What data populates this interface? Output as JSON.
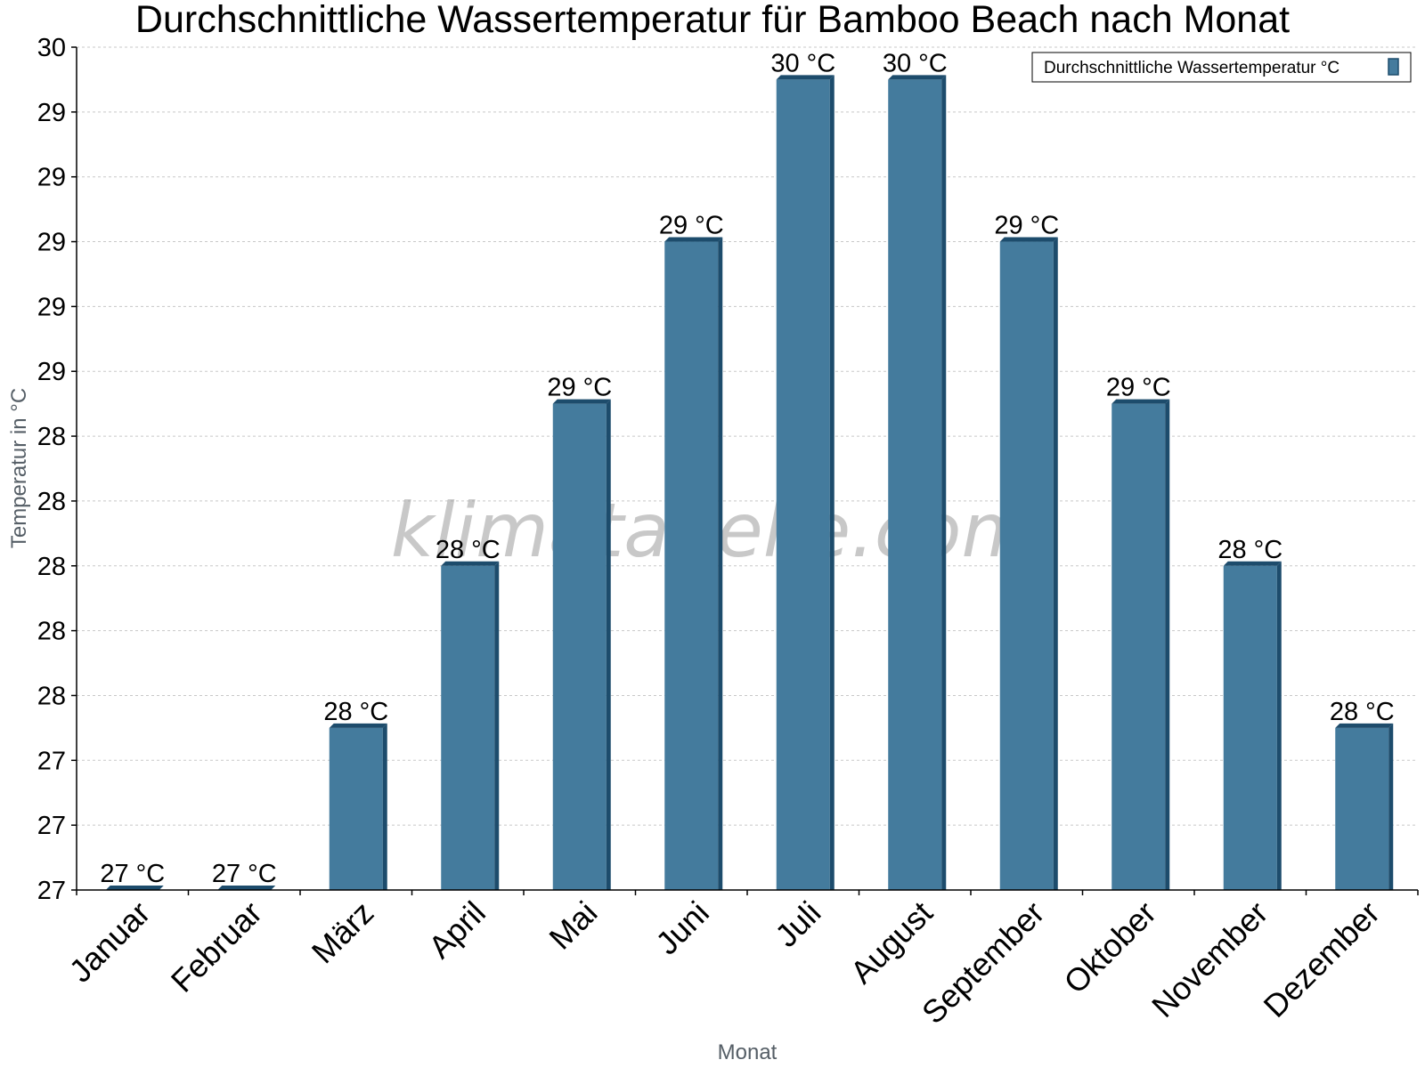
{
  "chart_data": {
    "type": "bar",
    "title": "Durchschnittliche Wassertemperatur für Bamboo Beach nach Monat",
    "xlabel": "Monat",
    "ylabel": "Temperatur in °C",
    "categories": [
      "Januar",
      "Februar",
      "März",
      "April",
      "Mai",
      "Juni",
      "Juli",
      "August",
      "September",
      "Oktober",
      "November",
      "Dezember"
    ],
    "series": [
      {
        "name": "Durchschnittliche Wassertemperatur °C",
        "values": [
          27.0,
          27.0,
          27.5,
          28.0,
          28.5,
          29.0,
          29.5,
          29.5,
          29.0,
          28.5,
          28.0,
          27.5
        ],
        "labels": [
          "27 °C",
          "27 °C",
          "28 °C",
          "28 °C",
          "29 °C",
          "29 °C",
          "30 °C",
          "30 °C",
          "29 °C",
          "29 °C",
          "28 °C",
          "28 °C"
        ]
      }
    ],
    "ylim": [
      27.0,
      29.6
    ],
    "yticks": [
      {
        "value": 27.0,
        "label": "27"
      },
      {
        "value": 27.2,
        "label": "27"
      },
      {
        "value": 27.4,
        "label": "27"
      },
      {
        "value": 27.6,
        "label": "28"
      },
      {
        "value": 27.8,
        "label": "28"
      },
      {
        "value": 28.0,
        "label": "28"
      },
      {
        "value": 28.2,
        "label": "28"
      },
      {
        "value": 28.4,
        "label": "28"
      },
      {
        "value": 28.6,
        "label": "29"
      },
      {
        "value": 28.8,
        "label": "29"
      },
      {
        "value": 29.0,
        "label": "29"
      },
      {
        "value": 29.2,
        "label": "29"
      },
      {
        "value": 29.4,
        "label": "29"
      },
      {
        "value": 29.6,
        "label": "30"
      }
    ],
    "grid": true,
    "legend": "top-right",
    "colors": {
      "bar": "#447b9d",
      "bar_dark": "#1d4c6c",
      "grid": "#c8c8c8"
    },
    "watermark": "klimatabelle.com"
  }
}
